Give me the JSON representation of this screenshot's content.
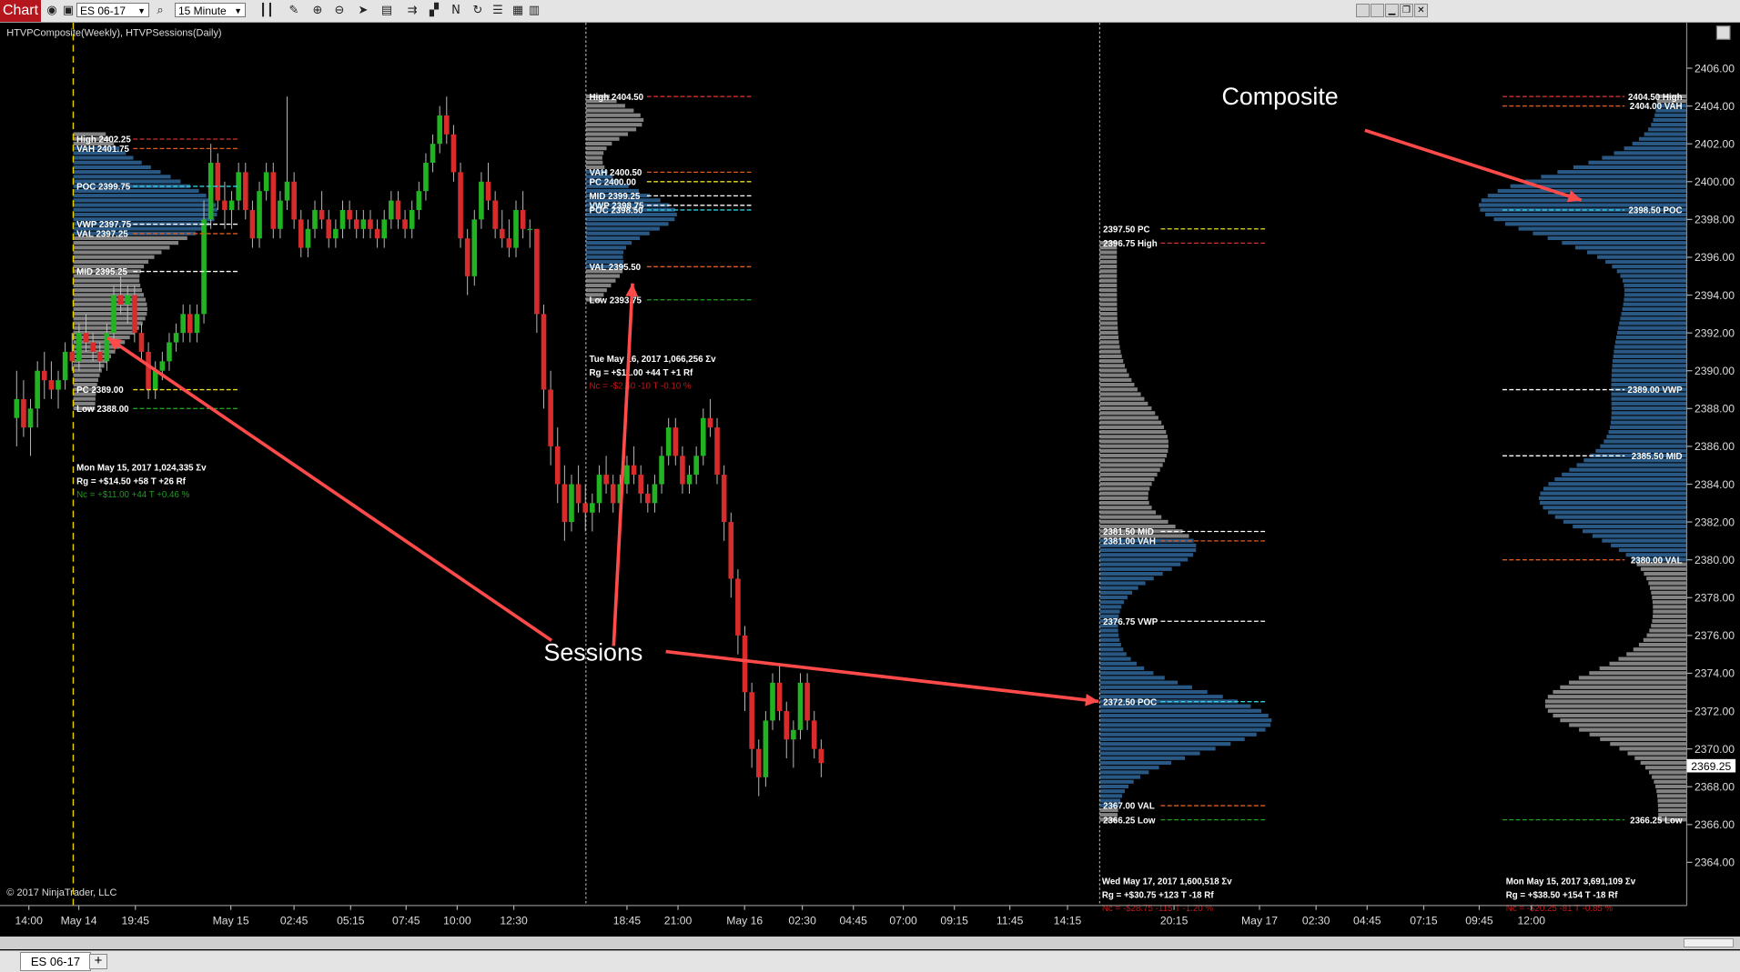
{
  "toolbar": {
    "tab_label": "Chart",
    "instrument": "ES 06-17",
    "interval": "15 Minute",
    "icons": [
      "camera-icon",
      "settings-icon",
      "search-icon",
      "bar-type-icon",
      "pencil-icon",
      "zoom-in-icon",
      "zoom-out-icon",
      "cursor-icon",
      "properties-icon",
      "indicators-icon",
      "strategies-icon",
      "drawing-tools-icon",
      "refresh-icon",
      "list-icon",
      "templates-icon",
      "colors-icon"
    ]
  },
  "chart": {
    "indicators_label": "HTVPComposite(Weekly), HTVPSessions(Daily)",
    "copyright": "© 2017 NinjaTrader, LLC",
    "current_price_label": "2369.25",
    "annotations": [
      {
        "text": "Composite"
      },
      {
        "text": "Sessions"
      }
    ],
    "price_axis": [
      "2406.00",
      "2404.00",
      "2402.00",
      "2400.00",
      "2398.00",
      "2396.00",
      "2394.00",
      "2392.00",
      "2390.00",
      "2388.00",
      "2386.00",
      "2384.00",
      "2382.00",
      "2380.00",
      "2378.00",
      "2376.00",
      "2374.00",
      "2372.00",
      "2370.00",
      "2368.00",
      "2366.00",
      "2364.00"
    ],
    "time_axis": [
      "14:00",
      "May 14",
      "19:45",
      "May 15",
      "02:45",
      "05:15",
      "07:45",
      "10:00",
      "12:30",
      "18:45",
      "21:00",
      "May 16",
      "02:30",
      "04:45",
      "07:00",
      "09:15",
      "11:45",
      "14:15",
      "20:15",
      "May 17",
      "02:30",
      "04:45",
      "07:15",
      "09:45",
      "12:00"
    ],
    "sessions": [
      {
        "levels": [
          {
            "text": "High 2402.25",
            "color": "#d03030",
            "kind": "high"
          },
          {
            "text": "VAH 2401.75",
            "color": "#e05a20",
            "kind": "vah"
          },
          {
            "text": "POC 2399.75",
            "color": "#30d0e0",
            "kind": "poc"
          },
          {
            "text": "VWP 2397.75",
            "color": "#ffffff",
            "kind": "vwp"
          },
          {
            "text": "VAL 2397.25",
            "color": "#e05a20",
            "kind": "val"
          },
          {
            "text": "MID 2395.25",
            "color": "#ffffff",
            "kind": "mid"
          },
          {
            "text": "PC 2389.00",
            "color": "#e8e020",
            "kind": "pc"
          },
          {
            "text": "Low 2388.00",
            "color": "#20a020",
            "kind": "low"
          }
        ],
        "stats": {
          "line1": "Mon  May 15, 2017     1,024,335 Σv",
          "line2": "Rg  =  +$14.50     +58 T     +26 Rf",
          "line3": "Nc  =  +$11.00     +44 T     +0.46 %",
          "nc_color": "#1f9a1f"
        }
      },
      {
        "levels": [
          {
            "text": "High 2404.50",
            "color": "#d03030",
            "kind": "high"
          },
          {
            "text": "VAH 2400.50",
            "color": "#e05a20",
            "kind": "vah"
          },
          {
            "text": "PC 2400.00",
            "color": "#e8e020",
            "kind": "pc"
          },
          {
            "text": "MID 2399.25",
            "color": "#ffffff",
            "kind": "mid"
          },
          {
            "text": "VWP 2398.75",
            "color": "#ffffff",
            "kind": "vwp"
          },
          {
            "text": "POC 2398.50",
            "color": "#30d0e0",
            "kind": "poc"
          },
          {
            "text": "VAL 2395.50",
            "color": "#e05a20",
            "kind": "val"
          },
          {
            "text": "Low 2393.75",
            "color": "#20a020",
            "kind": "low"
          }
        ],
        "stats": {
          "line1": "Tue  May 16, 2017     1,066,256 Σv",
          "line2": "Rg  =  +$11.00     +44 T     +1 Rf",
          "line3": "Nc  =  -$2.50     -10 T     -0.10 %",
          "nc_color": "#c01818"
        }
      },
      {
        "levels": [
          {
            "text": "2397.50 PC",
            "color": "#e8e020",
            "kind": "pc"
          },
          {
            "text": "2396.75 High",
            "color": "#d03030",
            "kind": "high"
          },
          {
            "text": "2381.50 MID",
            "color": "#ffffff",
            "kind": "mid"
          },
          {
            "text": "2381.00 VAH",
            "color": "#e05a20",
            "kind": "vah"
          },
          {
            "text": "2376.75 VWP",
            "color": "#ffffff",
            "kind": "vwp"
          },
          {
            "text": "2372.50 POC",
            "color": "#30d0e0",
            "kind": "poc"
          },
          {
            "text": "2367.00 VAL",
            "color": "#e05a20",
            "kind": "val"
          },
          {
            "text": "2366.25 Low",
            "color": "#20a020",
            "kind": "low"
          }
        ],
        "stats": {
          "line1": "Wed  May 17, 2017     1,600,518 Σv",
          "line2": "Rg  =  +$30.75     +123 T     -18 Rf",
          "line3": "Nc  =  -$28.75     -115 T     -1.20 %",
          "nc_color": "#c01818"
        }
      }
    ],
    "composite": {
      "levels": [
        {
          "text": "2404.50 High",
          "color": "#d03030",
          "kind": "high"
        },
        {
          "text": "2404.00 VAH",
          "color": "#e05a20",
          "kind": "vah"
        },
        {
          "text": "2398.50 POC",
          "color": "#30d0e0",
          "kind": "poc"
        },
        {
          "text": "2389.00 VWP",
          "color": "#ffffff",
          "kind": "vwp"
        },
        {
          "text": "2385.50 MID",
          "color": "#ffffff",
          "kind": "mid"
        },
        {
          "text": "2380.00 VAL",
          "color": "#e05a20",
          "kind": "val"
        },
        {
          "text": "2366.25 Low",
          "color": "#20a020",
          "kind": "low"
        }
      ],
      "stats": {
        "line1": "Mon  May 15, 2017     3,691,109 Σv",
        "line2": "Rg  =  +$38.50     +154 T     -18 Rf",
        "line3": "Nc  =  -$20.25     -81 T     -0.85 %",
        "nc_color": "#c01818"
      }
    }
  },
  "chart_data": {
    "type": "candlestick",
    "instrument": "ES 06-17",
    "interval": "15 Minute",
    "ylim": [
      2363,
      2407
    ],
    "up_color": "#22b322",
    "down_color": "#d82b2b",
    "candles": [
      [
        2387.5,
        2390.0,
        2386.0,
        2388.5
      ],
      [
        2388.5,
        2389.5,
        2386.5,
        2387.0
      ],
      [
        2387.0,
        2388.5,
        2385.5,
        2388.0
      ],
      [
        2388.0,
        2390.5,
        2387.0,
        2390.0
      ],
      [
        2390.0,
        2391.0,
        2388.5,
        2389.5
      ],
      [
        2389.5,
        2390.5,
        2388.5,
        2389.0
      ],
      [
        2389.0,
        2390.0,
        2388.0,
        2389.5
      ],
      [
        2389.5,
        2391.5,
        2389.0,
        2391.0
      ],
      [
        2391.0,
        2392.0,
        2390.0,
        2390.5
      ],
      [
        2390.5,
        2392.5,
        2390.0,
        2392.0
      ],
      [
        2392.0,
        2393.0,
        2391.0,
        2391.5
      ],
      [
        2391.5,
        2392.0,
        2390.5,
        2391.0
      ],
      [
        2391.0,
        2391.5,
        2390.0,
        2390.5
      ],
      [
        2390.5,
        2392.5,
        2390.0,
        2392.0
      ],
      [
        2392.0,
        2394.5,
        2391.5,
        2394.0
      ],
      [
        2394.0,
        2395.0,
        2393.0,
        2393.5
      ],
      [
        2393.5,
        2394.5,
        2392.5,
        2394.0
      ],
      [
        2394.0,
        2394.5,
        2391.5,
        2392.0
      ],
      [
        2392.0,
        2392.5,
        2390.5,
        2391.0
      ],
      [
        2391.0,
        2391.5,
        2388.5,
        2389.0
      ],
      [
        2389.0,
        2390.5,
        2388.5,
        2390.0
      ],
      [
        2390.0,
        2391.0,
        2389.5,
        2390.5
      ],
      [
        2390.5,
        2392.0,
        2390.0,
        2391.5
      ],
      [
        2391.5,
        2392.5,
        2391.0,
        2392.0
      ],
      [
        2392.0,
        2393.5,
        2391.5,
        2393.0
      ],
      [
        2393.0,
        2393.5,
        2391.5,
        2392.0
      ],
      [
        2392.0,
        2393.5,
        2391.5,
        2393.0
      ],
      [
        2393.0,
        2399.0,
        2392.5,
        2398.0
      ],
      [
        2398.0,
        2402.0,
        2397.5,
        2401.0
      ],
      [
        2401.0,
        2401.5,
        2398.5,
        2399.0
      ],
      [
        2399.0,
        2400.0,
        2397.5,
        2398.5
      ],
      [
        2398.5,
        2399.5,
        2397.5,
        2399.0
      ],
      [
        2399.0,
        2401.0,
        2398.5,
        2400.5
      ],
      [
        2400.5,
        2401.0,
        2398.0,
        2398.5
      ],
      [
        2398.5,
        2399.0,
        2396.5,
        2397.0
      ],
      [
        2397.0,
        2400.0,
        2396.5,
        2399.5
      ],
      [
        2399.5,
        2401.0,
        2399.0,
        2400.5
      ],
      [
        2400.5,
        2401.0,
        2397.0,
        2397.5
      ],
      [
        2397.5,
        2399.5,
        2397.0,
        2399.0
      ],
      [
        2399.0,
        2404.5,
        2398.5,
        2400.0
      ],
      [
        2400.0,
        2400.5,
        2397.5,
        2398.0
      ],
      [
        2398.0,
        2398.5,
        2396.0,
        2396.5
      ],
      [
        2396.5,
        2398.0,
        2396.0,
        2397.5
      ],
      [
        2397.5,
        2399.0,
        2397.0,
        2398.5
      ],
      [
        2398.5,
        2399.5,
        2397.5,
        2398.0
      ],
      [
        2398.0,
        2398.5,
        2396.5,
        2397.0
      ],
      [
        2397.0,
        2398.0,
        2396.5,
        2397.5
      ],
      [
        2397.5,
        2399.0,
        2397.0,
        2398.5
      ],
      [
        2398.5,
        2399.0,
        2397.5,
        2398.0
      ],
      [
        2398.0,
        2398.5,
        2397.0,
        2397.5
      ],
      [
        2397.5,
        2398.5,
        2397.0,
        2398.0
      ],
      [
        2398.0,
        2398.5,
        2397.0,
        2397.5
      ],
      [
        2397.5,
        2398.0,
        2396.5,
        2397.0
      ],
      [
        2397.0,
        2398.5,
        2396.5,
        2398.0
      ],
      [
        2398.0,
        2399.5,
        2397.5,
        2399.0
      ],
      [
        2399.0,
        2399.5,
        2397.5,
        2398.0
      ],
      [
        2398.0,
        2398.5,
        2397.0,
        2397.5
      ],
      [
        2397.5,
        2399.0,
        2397.0,
        2398.5
      ],
      [
        2398.5,
        2400.0,
        2398.0,
        2399.5
      ],
      [
        2399.5,
        2401.5,
        2399.0,
        2401.0
      ],
      [
        2401.0,
        2402.5,
        2400.5,
        2402.0
      ],
      [
        2402.0,
        2404.0,
        2401.5,
        2403.5
      ],
      [
        2403.5,
        2404.5,
        2402.0,
        2402.5
      ],
      [
        2402.5,
        2403.0,
        2400.0,
        2400.5
      ],
      [
        2400.5,
        2401.0,
        2396.5,
        2397.0
      ],
      [
        2397.0,
        2397.5,
        2394.0,
        2395.0
      ],
      [
        2395.0,
        2398.5,
        2394.5,
        2398.0
      ],
      [
        2398.0,
        2400.5,
        2397.5,
        2400.0
      ],
      [
        2400.0,
        2401.0,
        2398.5,
        2399.0
      ],
      [
        2399.0,
        2399.5,
        2397.0,
        2397.5
      ],
      [
        2397.5,
        2398.5,
        2396.5,
        2397.0
      ],
      [
        2397.0,
        2398.0,
        2396.0,
        2396.5
      ],
      [
        2396.5,
        2399.0,
        2396.0,
        2398.5
      ],
      [
        2398.5,
        2399.5,
        2397.0,
        2397.5
      ],
      [
        2397.5,
        2398.0,
        2396.5,
        2397.5
      ],
      [
        2397.5,
        2397.5,
        2392.0,
        2393.0
      ],
      [
        2393.0,
        2393.5,
        2388.0,
        2389.0
      ],
      [
        2389.0,
        2390.0,
        2385.0,
        2386.0
      ],
      [
        2386.0,
        2387.0,
        2383.0,
        2384.0
      ],
      [
        2384.0,
        2385.0,
        2381.0,
        2382.0
      ],
      [
        2382.0,
        2384.5,
        2381.5,
        2384.0
      ],
      [
        2384.0,
        2385.0,
        2382.5,
        2383.0
      ],
      [
        2383.0,
        2384.0,
        2381.5,
        2382.5
      ],
      [
        2382.5,
        2383.5,
        2381.5,
        2383.0
      ],
      [
        2383.0,
        2385.0,
        2382.5,
        2384.5
      ],
      [
        2384.5,
        2385.5,
        2383.5,
        2384.0
      ],
      [
        2384.0,
        2384.5,
        2382.5,
        2383.0
      ],
      [
        2383.0,
        2384.5,
        2382.5,
        2384.0
      ],
      [
        2384.0,
        2385.5,
        2383.5,
        2385.0
      ],
      [
        2385.0,
        2386.0,
        2384.0,
        2384.5
      ],
      [
        2384.5,
        2385.0,
        2383.0,
        2383.5
      ],
      [
        2383.5,
        2384.0,
        2382.5,
        2383.0
      ],
      [
        2383.0,
        2384.5,
        2382.5,
        2384.0
      ],
      [
        2384.0,
        2386.0,
        2383.5,
        2385.5
      ],
      [
        2385.5,
        2387.5,
        2385.0,
        2387.0
      ],
      [
        2387.0,
        2387.5,
        2385.0,
        2385.5
      ],
      [
        2385.5,
        2386.0,
        2383.5,
        2384.0
      ],
      [
        2384.0,
        2385.0,
        2383.5,
        2384.5
      ],
      [
        2384.5,
        2386.0,
        2384.0,
        2385.5
      ],
      [
        2385.5,
        2388.0,
        2385.0,
        2387.5
      ],
      [
        2387.5,
        2388.5,
        2386.5,
        2387.0
      ],
      [
        2387.0,
        2387.5,
        2384.0,
        2384.5
      ],
      [
        2384.5,
        2385.0,
        2381.0,
        2382.0
      ],
      [
        2382.0,
        2382.5,
        2378.0,
        2379.0
      ],
      [
        2379.0,
        2379.5,
        2375.0,
        2376.0
      ],
      [
        2376.0,
        2376.5,
        2372.0,
        2373.0
      ],
      [
        2373.0,
        2373.5,
        2369.0,
        2370.0
      ],
      [
        2370.0,
        2370.5,
        2367.5,
        2368.5
      ],
      [
        2368.5,
        2372.0,
        2368.0,
        2371.5
      ],
      [
        2371.5,
        2374.0,
        2371.0,
        2373.5
      ],
      [
        2373.5,
        2374.5,
        2371.5,
        2372.0
      ],
      [
        2372.0,
        2372.5,
        2369.5,
        2370.5
      ],
      [
        2370.5,
        2371.5,
        2369.0,
        2371.0
      ],
      [
        2371.0,
        2374.0,
        2370.5,
        2373.5
      ],
      [
        2373.5,
        2374.0,
        2371.0,
        2371.5
      ],
      [
        2371.5,
        2372.0,
        2369.5,
        2370.0
      ],
      [
        2370.0,
        2370.5,
        2368.5,
        2369.25
      ]
    ]
  }
}
